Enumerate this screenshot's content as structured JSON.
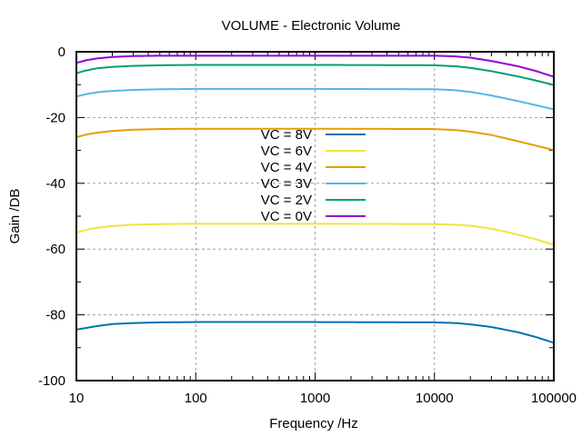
{
  "chart_data": {
    "type": "line",
    "title": "VOLUME - Electronic Volume",
    "xlabel": "Frequency /Hz",
    "ylabel": "Gain /DB",
    "xscale": "log",
    "xlim": [
      10,
      100000
    ],
    "ylim": [
      -100,
      0
    ],
    "xticks": [
      10,
      100,
      1000,
      10000,
      100000
    ],
    "xtick_labels": [
      "10",
      "100",
      "1000",
      "10000",
      "100000"
    ],
    "yticks": [
      -100,
      -80,
      -60,
      -40,
      -20,
      0
    ],
    "ytick_labels": [
      "-100",
      "-80",
      "-60",
      "-40",
      "-20",
      "0"
    ],
    "grid": true,
    "legend_position": "center",
    "x": [
      10,
      12,
      15,
      20,
      30,
      50,
      100,
      1000,
      10000,
      15000,
      20000,
      30000,
      50000,
      70000,
      100000
    ],
    "series": [
      {
        "name": "VC = 8V",
        "color": "#0072b2",
        "values": [
          -84.5,
          -84.0,
          -83.4,
          -82.8,
          -82.5,
          -82.3,
          -82.2,
          -82.2,
          -82.3,
          -82.5,
          -82.9,
          -83.7,
          -85.3,
          -86.7,
          -88.5
        ]
      },
      {
        "name": "VC = 6V",
        "color": "#f0e442",
        "values": [
          -55.0,
          -54.2,
          -53.5,
          -53.0,
          -52.6,
          -52.4,
          -52.3,
          -52.3,
          -52.4,
          -52.6,
          -52.9,
          -53.8,
          -55.6,
          -57.0,
          -58.7
        ]
      },
      {
        "name": "VC = 4V",
        "color": "#e69f00",
        "values": [
          -26.0,
          -25.2,
          -24.6,
          -24.1,
          -23.7,
          -23.5,
          -23.4,
          -23.4,
          -23.5,
          -23.8,
          -24.3,
          -25.3,
          -27.2,
          -28.5,
          -29.9
        ]
      },
      {
        "name": "VC = 3V",
        "color": "#56b4e9",
        "values": [
          -13.6,
          -12.9,
          -12.3,
          -11.9,
          -11.6,
          -11.4,
          -11.3,
          -11.3,
          -11.4,
          -11.7,
          -12.2,
          -13.3,
          -15.0,
          -16.2,
          -17.5
        ]
      },
      {
        "name": "VC = 2V",
        "color": "#009e73",
        "values": [
          -6.5,
          -5.7,
          -5.0,
          -4.6,
          -4.3,
          -4.1,
          -4.0,
          -4.0,
          -4.1,
          -4.4,
          -4.9,
          -5.9,
          -7.5,
          -8.7,
          -10.1
        ]
      },
      {
        "name": "VC = 0V",
        "color": "#9400d3",
        "values": [
          -3.4,
          -2.6,
          -2.0,
          -1.6,
          -1.3,
          -1.2,
          -1.2,
          -1.2,
          -1.2,
          -1.4,
          -1.8,
          -2.8,
          -4.4,
          -5.8,
          -7.6
        ]
      }
    ]
  }
}
